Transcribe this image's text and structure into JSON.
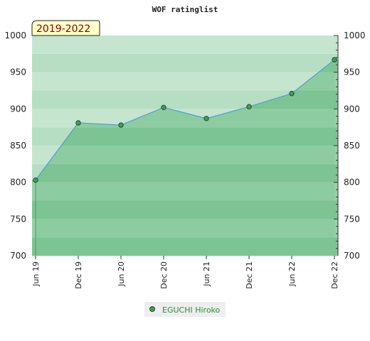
{
  "title": "WOF ratinglist",
  "period_label": "2019-2022",
  "colors": {
    "band_dark": "#7bc493",
    "band_light": "#96d0a8",
    "band_bg": "#f0f8f2",
    "area_fill": "#7ec596",
    "line": "#5a9fd4",
    "marker": "#3f9f5c",
    "legend_bg": "#eeeeee",
    "legend_text": "#2e8b3e"
  },
  "chart_data": {
    "type": "area",
    "title": "WOF ratinglist",
    "categories": [
      "Jun 19",
      "Dec 19",
      "Jun 20",
      "Dec 20",
      "Jun 21",
      "Dec 21",
      "Jun 22",
      "Dec 22"
    ],
    "series": [
      {
        "name": "EGUCHI Hiroko",
        "values": [
          803,
          881,
          878,
          902,
          887,
          903,
          921,
          967
        ]
      }
    ],
    "ylim": [
      700,
      1000
    ],
    "yticks": [
      700,
      750,
      800,
      850,
      900,
      950,
      1000
    ],
    "grid": true,
    "legend_position": "bottom"
  }
}
